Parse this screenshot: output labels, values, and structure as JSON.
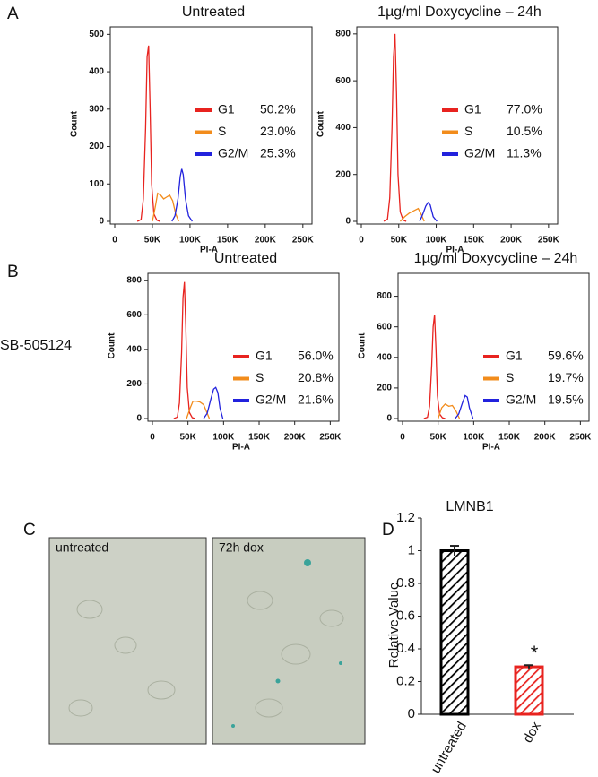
{
  "panel_labels": [
    "A",
    "B",
    "C",
    "D"
  ],
  "row_label": "SB-505124",
  "images": [
    "untreated",
    "72h dox"
  ],
  "chart_data": [
    {
      "type": "line",
      "title": "Untreated",
      "x_label": "PI-A",
      "y_label": "Count",
      "xlim": [
        0,
        262144
      ],
      "ylim": [
        0,
        520
      ],
      "xticks": [
        0,
        {
          "value": 50000,
          "label": "50K"
        },
        {
          "value": 100000,
          "label": "100K"
        },
        {
          "value": 150000,
          "label": "150K"
        },
        {
          "value": 200000,
          "label": "200K"
        },
        {
          "value": 250000,
          "label": "250K"
        }
      ],
      "yticks": [
        0,
        100,
        200,
        300,
        400,
        500
      ],
      "series": [
        {
          "name": "G1",
          "stat": "50.2%",
          "color": "#e8231f",
          "x": [
            30000,
            35000,
            38000,
            41000,
            43000,
            45000,
            47000,
            49000,
            52000,
            56000,
            60000
          ],
          "values": [
            0,
            5,
            60,
            250,
            440,
            470,
            300,
            100,
            20,
            3,
            0
          ]
        },
        {
          "name": "S",
          "stat": "23.0%",
          "color": "#f28c1c",
          "x": [
            50000,
            54000,
            57000,
            61000,
            65000,
            69000,
            73000,
            77000,
            81000,
            85000
          ],
          "values": [
            0,
            40,
            75,
            70,
            60,
            65,
            70,
            55,
            20,
            0
          ]
        },
        {
          "name": "G2/M",
          "stat": "25.3%",
          "color": "#2222dd",
          "x": [
            76000,
            80000,
            84000,
            87000,
            89000,
            91000,
            94000,
            98000,
            103000
          ],
          "values": [
            0,
            15,
            60,
            120,
            140,
            125,
            60,
            15,
            0
          ]
        }
      ]
    },
    {
      "type": "line",
      "title": "1µg/ml Doxycycline – 24h",
      "x_label": "PI-A",
      "y_label": "Count",
      "xlim": [
        0,
        262144
      ],
      "ylim": [
        0,
        830
      ],
      "xticks": [
        0,
        {
          "value": 50000,
          "label": "50K"
        },
        {
          "value": 100000,
          "label": "100K"
        },
        {
          "value": 150000,
          "label": "150K"
        },
        {
          "value": 200000,
          "label": "200K"
        },
        {
          "value": 250000,
          "label": "250K"
        }
      ],
      "yticks": [
        0,
        200,
        400,
        600,
        800
      ],
      "series": [
        {
          "name": "G1",
          "stat": "77.0%",
          "color": "#e8231f",
          "x": [
            30000,
            35000,
            38000,
            41000,
            43000,
            45000,
            47000,
            49000,
            52000,
            56000,
            60000
          ],
          "values": [
            0,
            10,
            100,
            400,
            700,
            800,
            550,
            200,
            40,
            5,
            0
          ]
        },
        {
          "name": "S",
          "stat": "10.5%",
          "color": "#f28c1c",
          "x": [
            52000,
            58000,
            64000,
            70000,
            76000,
            80000,
            84000
          ],
          "values": [
            0,
            20,
            35,
            45,
            55,
            30,
            0
          ]
        },
        {
          "name": "G2/M",
          "stat": "11.3%",
          "color": "#2222dd",
          "x": [
            78000,
            82000,
            86000,
            89000,
            92000,
            96000,
            101000
          ],
          "values": [
            0,
            30,
            65,
            80,
            70,
            20,
            0
          ]
        }
      ]
    },
    {
      "type": "line",
      "title": "Untreated",
      "x_label": "PI-A",
      "y_label": "Count",
      "xlim": [
        0,
        262144
      ],
      "ylim": [
        0,
        840
      ],
      "xticks": [
        0,
        {
          "value": 50000,
          "label": "50K"
        },
        {
          "value": 100000,
          "label": "100K"
        },
        {
          "value": 150000,
          "label": "150K"
        },
        {
          "value": 200000,
          "label": "200K"
        },
        {
          "value": 250000,
          "label": "250K"
        }
      ],
      "yticks": [
        0,
        200,
        400,
        600,
        800
      ],
      "series": [
        {
          "name": "G1",
          "stat": "56.0%",
          "color": "#e8231f",
          "x": [
            30000,
            35000,
            38000,
            41000,
            43000,
            45000,
            47000,
            49000,
            52000,
            56000,
            60000
          ],
          "values": [
            0,
            8,
            90,
            380,
            700,
            790,
            520,
            180,
            35,
            5,
            0
          ]
        },
        {
          "name": "S",
          "stat": "20.8%",
          "color": "#f28c1c",
          "x": [
            48000,
            53000,
            57000,
            62000,
            67000,
            72000,
            76000,
            80000
          ],
          "values": [
            0,
            60,
            100,
            100,
            95,
            80,
            40,
            0
          ]
        },
        {
          "name": "G2/M",
          "stat": "21.6%",
          "color": "#2222dd",
          "x": [
            72000,
            77000,
            82000,
            86000,
            89000,
            92000,
            95000,
            99000
          ],
          "values": [
            0,
            30,
            110,
            170,
            180,
            150,
            60,
            0
          ]
        }
      ]
    },
    {
      "type": "line",
      "title": "1µg/ml Doxycycline – 24h",
      "x_label": "PI-A",
      "y_label": "Count",
      "xlim": [
        0,
        262144
      ],
      "ylim": [
        0,
        950
      ],
      "xticks": [
        0,
        {
          "value": 50000,
          "label": "50K"
        },
        {
          "value": 100000,
          "label": "100K"
        },
        {
          "value": 150000,
          "label": "150K"
        },
        {
          "value": 200000,
          "label": "200K"
        },
        {
          "value": 250000,
          "label": "250K"
        }
      ],
      "yticks": [
        0,
        200,
        400,
        600,
        800
      ],
      "series": [
        {
          "name": "G1",
          "stat": "59.6%",
          "color": "#e8231f",
          "x": [
            30000,
            35000,
            38000,
            41000,
            43000,
            45000,
            47000,
            49000,
            52000,
            56000,
            60000
          ],
          "values": [
            0,
            8,
            80,
            350,
            600,
            680,
            450,
            150,
            30,
            5,
            0
          ]
        },
        {
          "name": "S",
          "stat": "19.7%",
          "color": "#f28c1c",
          "x": [
            50000,
            55000,
            60000,
            65000,
            70000,
            75000,
            80000
          ],
          "values": [
            0,
            70,
            95,
            80,
            85,
            50,
            0
          ]
        },
        {
          "name": "G2/M",
          "stat": "19.5%",
          "color": "#2222dd",
          "x": [
            74000,
            79000,
            84000,
            88000,
            91000,
            94000,
            99000
          ],
          "values": [
            0,
            30,
            100,
            150,
            140,
            70,
            0
          ]
        }
      ]
    },
    {
      "type": "bar",
      "title": "LMNB1",
      "y_label": "Relative Value",
      "categories": [
        "untreated",
        "dox"
      ],
      "values": [
        1.0,
        0.29
      ],
      "errors": [
        0.03,
        0.01
      ],
      "colors": [
        "#000000",
        "#e8231f"
      ],
      "annotations": [
        "",
        "*"
      ],
      "ylim": [
        0,
        1.2
      ],
      "yticks": [
        0,
        0.2,
        0.4,
        0.6,
        0.8,
        1,
        1.2
      ]
    }
  ]
}
